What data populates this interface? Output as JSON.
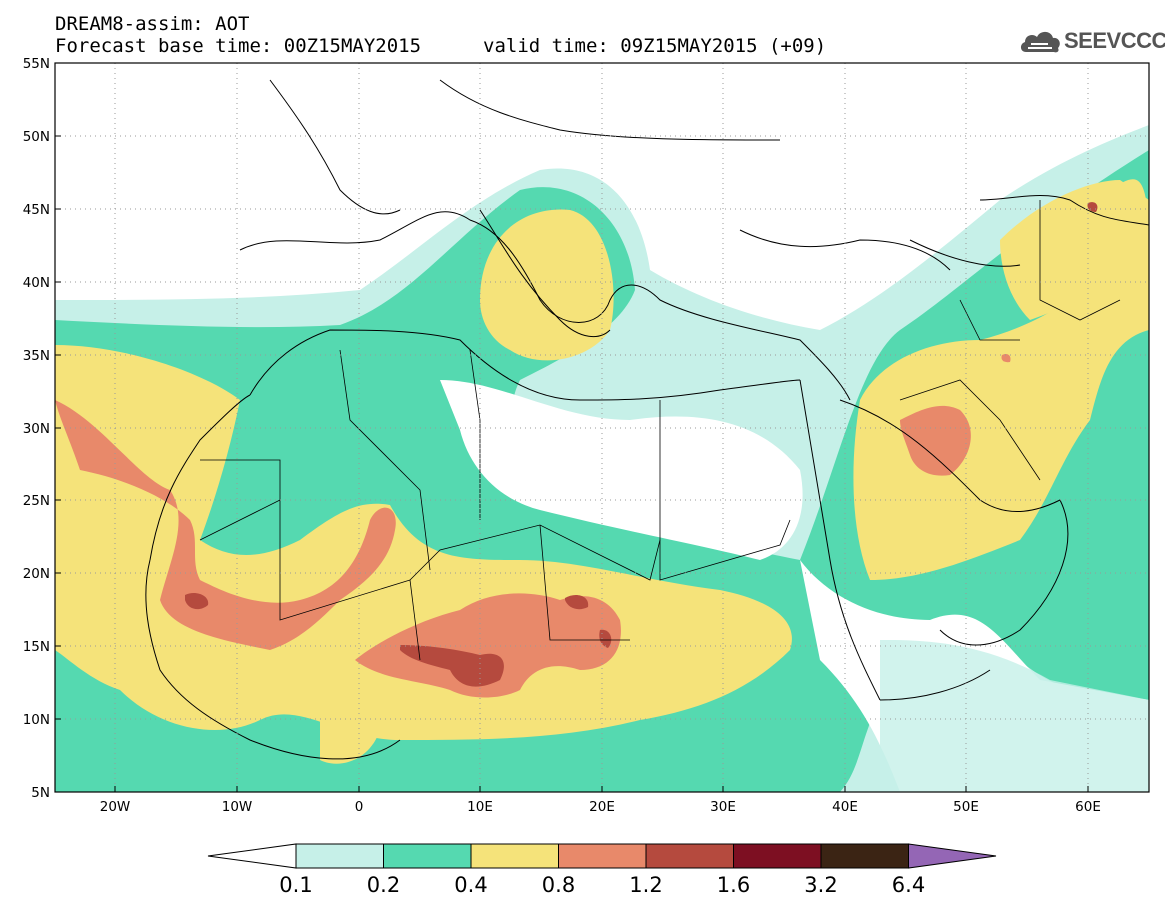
{
  "header": {
    "title_line1": "DREAM8-assim: AOT",
    "title_line2": "Forecast base time: 00Z15MAY2015",
    "valid_time": "valid time: 09Z15MAY2015 (+09)",
    "logo_text": "SEEVCCC"
  },
  "map": {
    "lat_labels": [
      "55N",
      "50N",
      "45N",
      "40N",
      "35N",
      "30N",
      "25N",
      "20N",
      "15N",
      "10N",
      "5N"
    ],
    "lon_labels": [
      "20W",
      "10W",
      "0",
      "10E",
      "20E",
      "30E",
      "40E",
      "50E",
      "60E"
    ],
    "lat_range": [
      5,
      55
    ],
    "lon_range": [
      -25,
      65
    ]
  },
  "colorbar": {
    "levels": [
      "0.1",
      "0.2",
      "0.4",
      "0.8",
      "1.2",
      "1.6",
      "3.2",
      "6.4"
    ],
    "colors": [
      "#c6f0e8",
      "#55d9b0",
      "#f5e37a",
      "#e8896a",
      "#b54a3e",
      "#7d0f22",
      "#3b2414",
      "#9466b5"
    ],
    "under_color": "#ffffff"
  }
}
